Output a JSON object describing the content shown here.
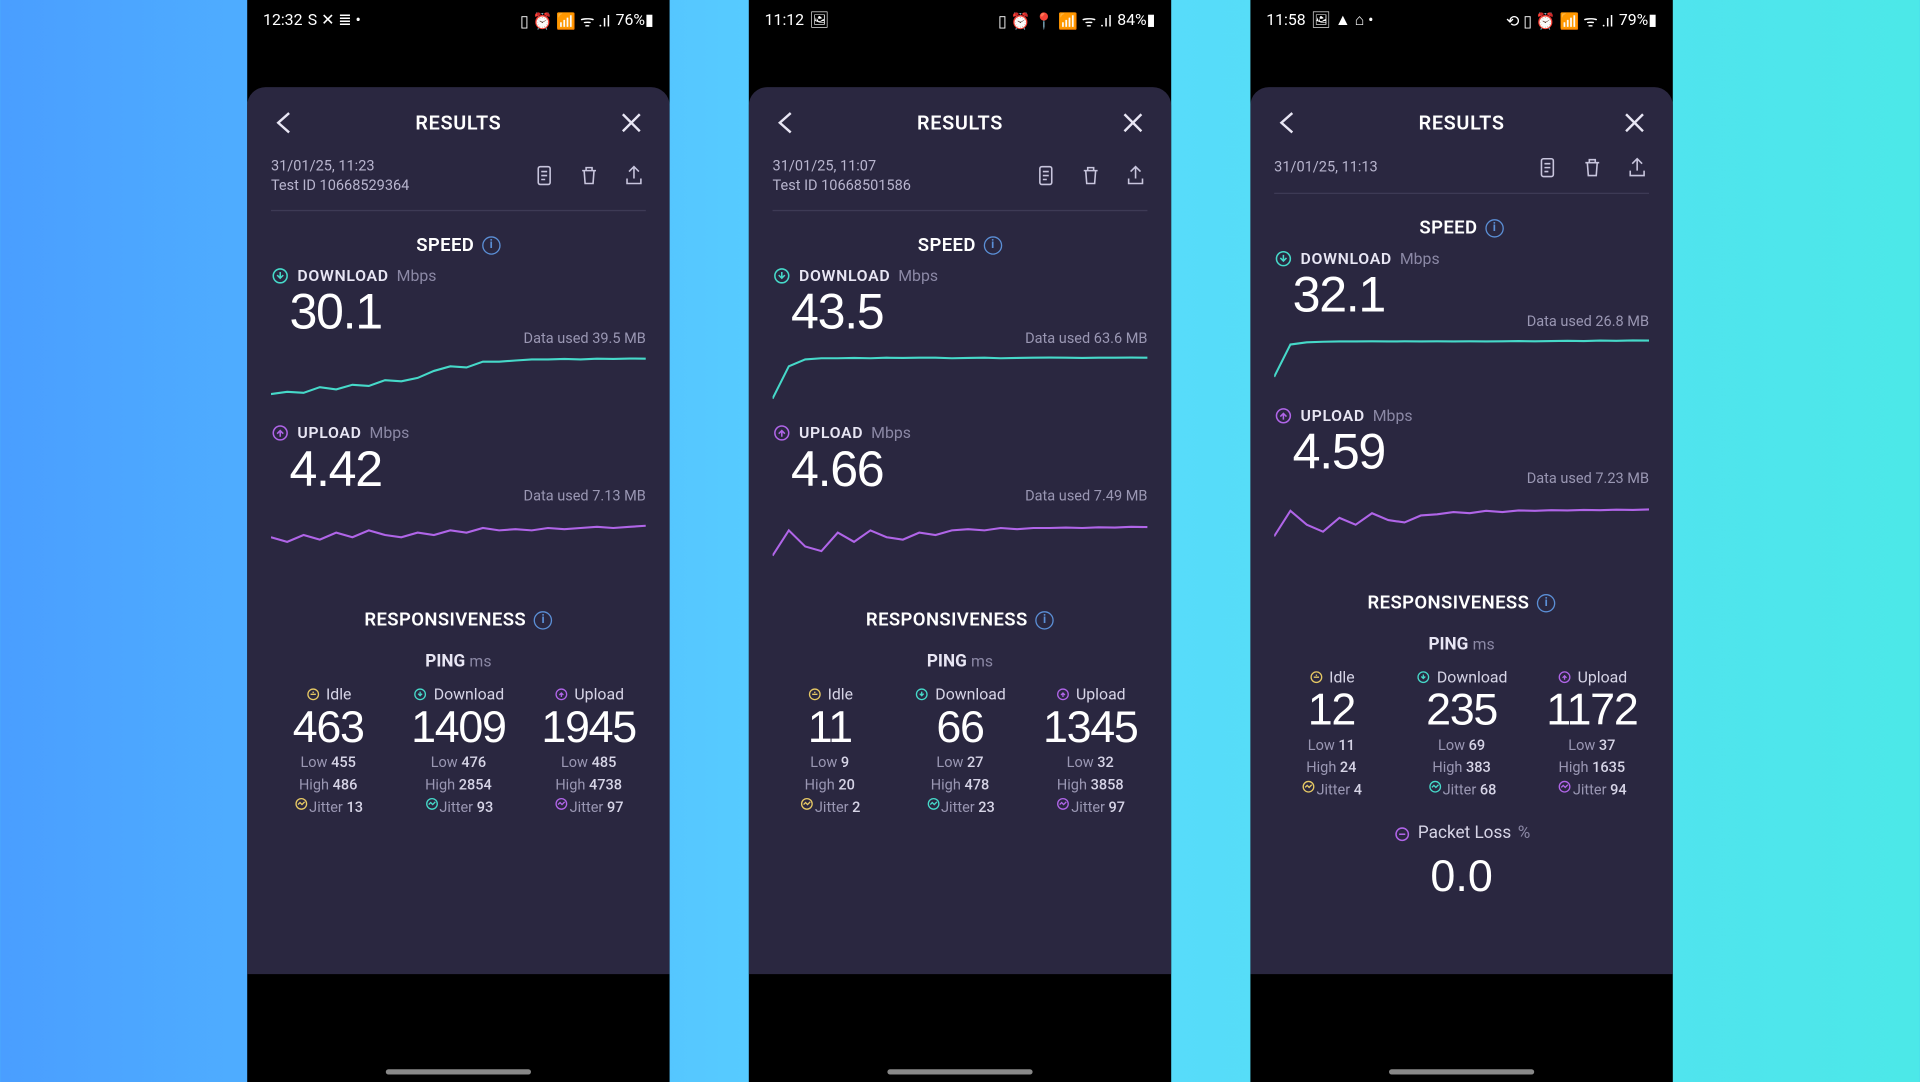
{
  "colors": {
    "download": "#46d9c9",
    "upload": "#b065e8",
    "idle": "#e6c864",
    "card_bg": "#2a2740",
    "text_primary": "#ffffff",
    "text_muted": "#9a97b3"
  },
  "labels": {
    "results": "RESULTS",
    "speed": "SPEED",
    "download": "DOWNLOAD",
    "upload": "UPLOAD",
    "mbps": "Mbps",
    "responsiveness": "RESPONSIVENESS",
    "ping": "PING",
    "ms": "ms",
    "idle": "Idle",
    "download_p": "Download",
    "upload_p": "Upload",
    "low": "Low",
    "high": "High",
    "jitter": "Jitter",
    "data_used": "Data used",
    "test_id": "Test ID",
    "packet_loss": "Packet Loss",
    "pct": "%"
  },
  "shots": [
    {
      "status": {
        "time": "12:32",
        "left_icons": "S ✕ ≣ •",
        "right_icons": "▯ ⏰ 📶 ᯤ .ıl",
        "battery": "76%▮"
      },
      "meta": {
        "date": "31/01/25, 11:23",
        "test_id": "10668529364"
      },
      "download": {
        "value": "30.1",
        "data_used": "39.5 MB",
        "series": [
          6,
          7,
          6.5,
          9,
          8,
          10,
          9.5,
          12,
          11.5,
          13,
          16,
          18,
          17.5,
          20,
          20,
          20.5,
          21,
          21,
          21.2,
          21,
          21.3,
          21.2,
          21.4,
          21.3
        ]
      },
      "upload": {
        "value": "4.42",
        "data_used": "7.13 MB",
        "series": [
          12,
          10,
          13,
          11,
          14,
          12,
          15,
          13,
          12,
          14,
          13,
          15,
          14,
          16,
          15,
          15.5,
          15,
          16,
          15.5,
          16,
          16.5,
          16,
          16.5,
          17
        ]
      },
      "ping": {
        "idle": {
          "val": "463",
          "low": "455",
          "high": "486",
          "jitter": "13"
        },
        "download": {
          "val": "1409",
          "low": "476",
          "high": "2854",
          "jitter": "93"
        },
        "upload": {
          "val": "1945",
          "low": "485",
          "high": "4738",
          "jitter": "97"
        }
      },
      "packet_loss": null
    },
    {
      "status": {
        "time": "11:12",
        "left_icons": "🖼",
        "right_icons": "▯ ⏰ 📍 📶 ᯤ .ıl",
        "battery": "84%▮"
      },
      "meta": {
        "date": "31/01/25, 11:07",
        "test_id": "10668501586"
      },
      "download": {
        "value": "43.5",
        "data_used": "63.6 MB",
        "series": [
          4,
          18,
          21,
          21.5,
          21.5,
          21.6,
          21.5,
          21.7,
          21.6,
          21.7,
          21.7,
          21.5,
          21.6,
          21.7,
          21.5,
          21.6,
          21.7,
          21.8,
          21.7,
          21.6,
          21.7,
          21.7,
          21.8,
          21.7
        ]
      },
      "upload": {
        "value": "4.66",
        "data_used": "7.49 MB",
        "series": [
          4,
          15,
          8,
          6,
          14,
          10,
          15,
          12,
          11,
          14,
          13,
          15,
          15.5,
          15,
          16,
          15.5,
          16,
          16,
          16.2,
          16,
          16.3,
          16.2,
          16.5,
          16.4
        ]
      },
      "ping": {
        "idle": {
          "val": "11",
          "low": "9",
          "high": "20",
          "jitter": "2"
        },
        "download": {
          "val": "66",
          "low": "27",
          "high": "478",
          "jitter": "23"
        },
        "upload": {
          "val": "1345",
          "low": "32",
          "high": "3858",
          "jitter": "97"
        }
      },
      "packet_loss": null
    },
    {
      "status": {
        "time": "11:58",
        "left_icons": "🖼 ▲ ⌂ •",
        "right_icons": "⟲ ▯ ⏰ 📶 ᯤ .ıl",
        "battery": "79%▮"
      },
      "meta": {
        "date": "31/01/25, 11:13",
        "test_id": null
      },
      "download": {
        "value": "32.1",
        "data_used": "26.8 MB",
        "series": [
          6,
          20,
          21,
          21.2,
          21.3,
          21.3,
          21.4,
          21.3,
          21.4,
          21.3,
          21.4,
          21.3,
          21.4,
          21.3,
          21.4,
          21.5,
          21.4,
          21.5,
          21.6,
          21.5,
          21.7,
          21.6,
          21.8,
          21.7
        ]
      },
      "upload": {
        "value": "4.59",
        "data_used": "7.23 MB",
        "series": [
          5,
          16,
          10,
          7,
          13,
          10,
          15,
          12,
          11,
          14,
          14.5,
          15.5,
          15,
          16,
          15.5,
          16.2,
          16,
          16.3,
          16.2,
          16.4,
          16.3,
          16.5,
          16.4,
          16.6
        ]
      },
      "ping": {
        "idle": {
          "val": "12",
          "low": "11",
          "high": "24",
          "jitter": "4"
        },
        "download": {
          "val": "235",
          "low": "69",
          "high": "383",
          "jitter": "68"
        },
        "upload": {
          "val": "1172",
          "low": "37",
          "high": "1635",
          "jitter": "94"
        }
      },
      "packet_loss": "0.0"
    }
  ]
}
